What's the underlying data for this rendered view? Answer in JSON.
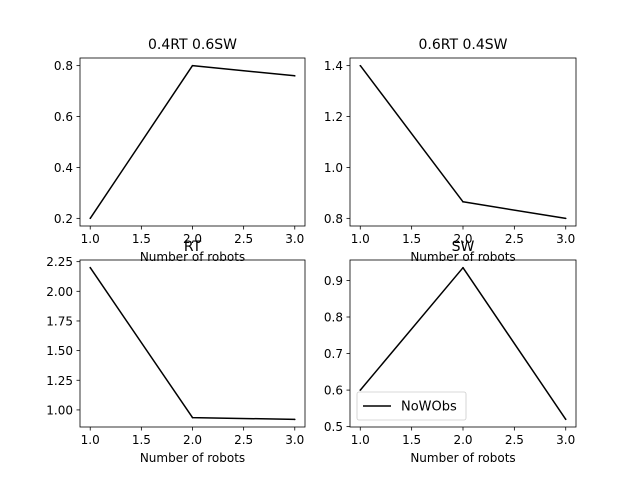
{
  "chart_data": [
    {
      "type": "line",
      "title": "0.4RT 0.6SW",
      "xlabel": "Number of robots",
      "ylabel": "",
      "x": [
        1,
        2,
        3
      ],
      "series": [
        {
          "values": [
            0.2,
            0.8,
            0.76
          ],
          "color": "#000000"
        }
      ],
      "xlim": [
        0.9,
        3.1
      ],
      "ylim": [
        0.17,
        0.83
      ],
      "xticks": [
        1.0,
        1.5,
        2.0,
        2.5,
        3.0
      ],
      "xtick_labels": [
        "1.0",
        "1.5",
        "2.0",
        "2.5",
        "3.0"
      ],
      "yticks": [
        0.2,
        0.4,
        0.6,
        0.8
      ],
      "ytick_labels": [
        "0.2",
        "0.4",
        "0.6",
        "0.8"
      ],
      "grid": false
    },
    {
      "type": "line",
      "title": "0.6RT 0.4SW",
      "xlabel": "Number of robots",
      "ylabel": "",
      "x": [
        1,
        2,
        3
      ],
      "series": [
        {
          "values": [
            1.4,
            0.865,
            0.8
          ],
          "color": "#000000"
        }
      ],
      "xlim": [
        0.9,
        3.1
      ],
      "ylim": [
        0.77,
        1.43
      ],
      "xticks": [
        1.0,
        1.5,
        2.0,
        2.5,
        3.0
      ],
      "xtick_labels": [
        "1.0",
        "1.5",
        "2.0",
        "2.5",
        "3.0"
      ],
      "yticks": [
        0.8,
        1.0,
        1.2,
        1.4
      ],
      "ytick_labels": [
        "0.8",
        "1.0",
        "1.2",
        "1.4"
      ],
      "grid": false
    },
    {
      "type": "line",
      "title": "RT",
      "xlabel": "Number of robots",
      "ylabel": "",
      "x": [
        1,
        2,
        3
      ],
      "series": [
        {
          "values": [
            2.2,
            0.935,
            0.92
          ],
          "color": "#000000"
        }
      ],
      "xlim": [
        0.9,
        3.1
      ],
      "ylim": [
        0.856,
        2.264
      ],
      "xticks": [
        1.0,
        1.5,
        2.0,
        2.5,
        3.0
      ],
      "xtick_labels": [
        "1.0",
        "1.5",
        "2.0",
        "2.5",
        "3.0"
      ],
      "yticks": [
        1.0,
        1.25,
        1.5,
        1.75,
        2.0,
        2.25
      ],
      "ytick_labels": [
        "1.00",
        "1.25",
        "1.50",
        "1.75",
        "2.00",
        "2.25"
      ],
      "grid": false
    },
    {
      "type": "line",
      "title": "SW",
      "xlabel": "Number of robots",
      "ylabel": "",
      "x": [
        1,
        2,
        3
      ],
      "series": [
        {
          "name": "NoWObs",
          "values": [
            0.6,
            0.935,
            0.52
          ],
          "color": "#000000"
        }
      ],
      "xlim": [
        0.9,
        3.1
      ],
      "ylim": [
        0.499,
        0.956
      ],
      "xticks": [
        1.0,
        1.5,
        2.0,
        2.5,
        3.0
      ],
      "xtick_labels": [
        "1.0",
        "1.5",
        "2.0",
        "2.5",
        "3.0"
      ],
      "yticks": [
        0.5,
        0.6,
        0.7,
        0.8,
        0.9
      ],
      "ytick_labels": [
        "0.5",
        "0.6",
        "0.7",
        "0.8",
        "0.9"
      ],
      "grid": false,
      "legend": {
        "position": "lower-left",
        "entries": [
          "NoWObs"
        ]
      }
    }
  ]
}
